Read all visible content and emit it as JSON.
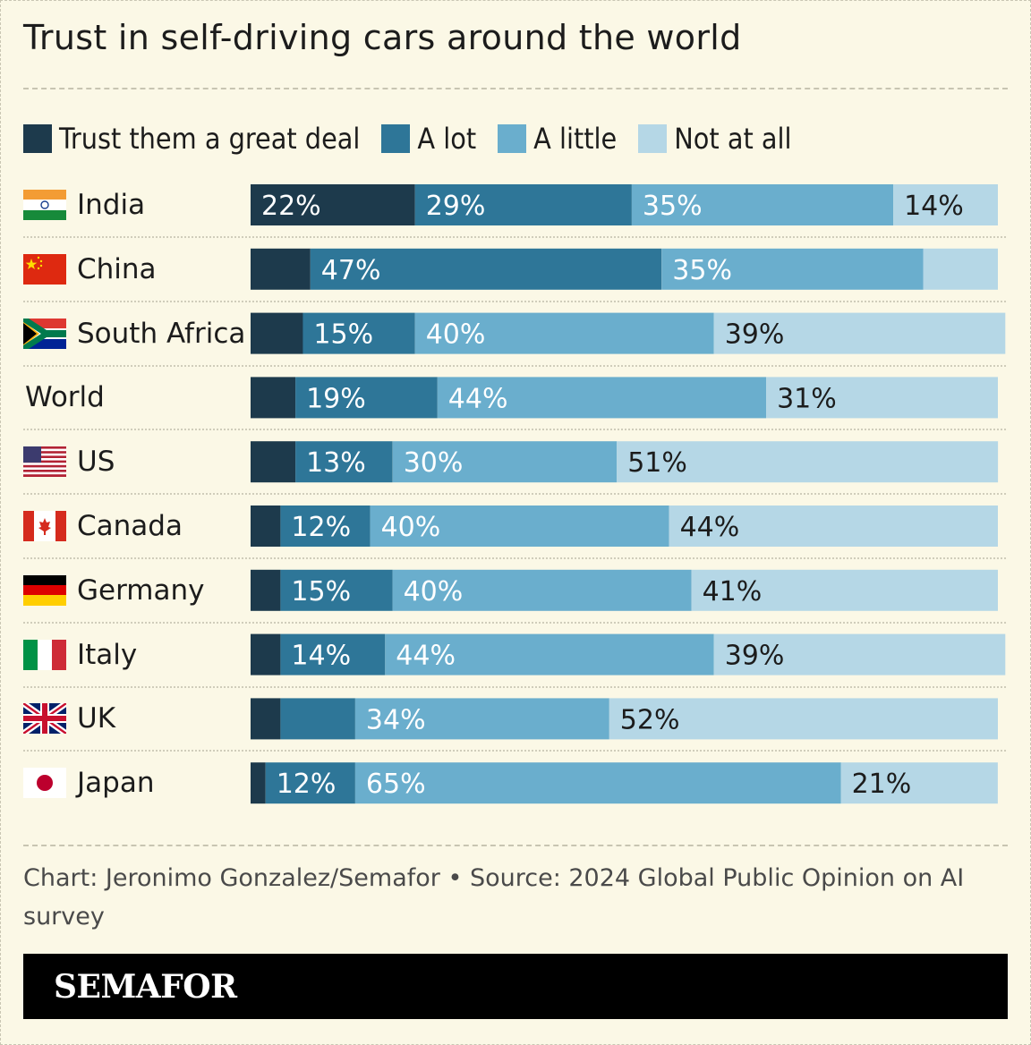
{
  "title": "Trust in self-driving cars around the world",
  "colors": {
    "great_deal": "#1d3a4c",
    "a_lot": "#2e7698",
    "a_little": "#6aaecd",
    "not_at_all": "#b5d7e6",
    "background": "#fbf8e6"
  },
  "chart_data": {
    "type": "bar",
    "orientation": "horizontal",
    "stacked": true,
    "legend_position": "top",
    "categories": [
      "India",
      "China",
      "South Africa",
      "World",
      "US",
      "Canada",
      "Germany",
      "Italy",
      "UK",
      "Japan"
    ],
    "flags": [
      "india-flag",
      "china-flag",
      "south-africa-flag",
      "",
      "us-flag",
      "canada-flag",
      "germany-flag",
      "italy-flag",
      "uk-flag",
      "japan-flag"
    ],
    "series": [
      {
        "name": "Trust them a great deal",
        "values": [
          22,
          8,
          7,
          6,
          6,
          4,
          4,
          4,
          4,
          2
        ],
        "labels": [
          "22%",
          "",
          "",
          "",
          "",
          "",
          "",
          "",
          "",
          ""
        ]
      },
      {
        "name": "A lot",
        "values": [
          29,
          47,
          15,
          19,
          13,
          12,
          15,
          14,
          10,
          12
        ],
        "labels": [
          "29%",
          "47%",
          "15%",
          "19%",
          "13%",
          "12%",
          "15%",
          "14%",
          "",
          "12%"
        ]
      },
      {
        "name": "A little",
        "values": [
          35,
          35,
          40,
          44,
          30,
          40,
          40,
          44,
          34,
          65
        ],
        "labels": [
          "35%",
          "35%",
          "40%",
          "44%",
          "30%",
          "40%",
          "40%",
          "44%",
          "34%",
          "65%"
        ]
      },
      {
        "name": "Not at all",
        "values": [
          14,
          10,
          39,
          31,
          51,
          44,
          41,
          39,
          52,
          21
        ],
        "labels": [
          "14%",
          "",
          "39%",
          "31%",
          "51%",
          "44%",
          "41%",
          "39%",
          "52%",
          "21%"
        ]
      }
    ]
  },
  "footer": {
    "credit": "Chart: Jeronimo Gonzalez/Semafor • Source: 2024 Global Public Opinion on AI survey",
    "brand": "SEMAFOR"
  }
}
